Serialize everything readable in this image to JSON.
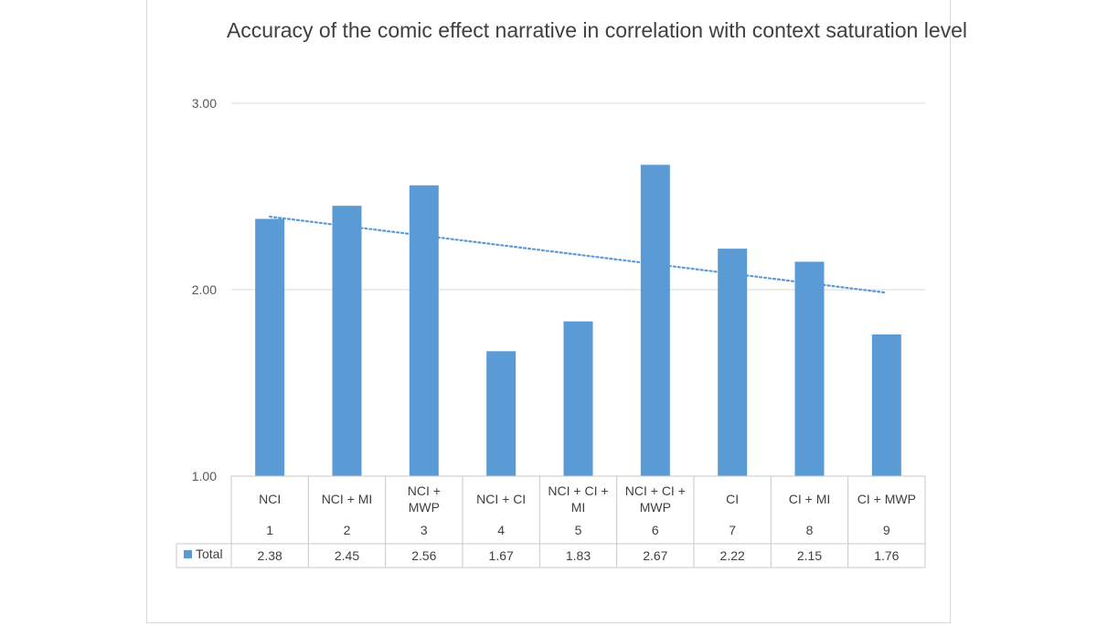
{
  "chart_data": {
    "type": "bar",
    "title": "Accuracy of the comic effect narrative in correlation with context saturation level",
    "categories": [
      "NCI",
      "NCI + MI",
      "NCI + MWP",
      "NCI + CI",
      "NCI + CI + MI",
      "NCI + CI + MWP",
      "CI",
      "CI + MI",
      "CI + MWP"
    ],
    "category_labels": [
      [
        "NCI"
      ],
      [
        "NCI + MI"
      ],
      [
        "NCI +",
        "MWP"
      ],
      [
        "NCI + CI"
      ],
      [
        "NCI + CI +",
        "MI"
      ],
      [
        "NCI + CI +",
        "MWP"
      ],
      [
        "CI"
      ],
      [
        "CI + MI"
      ],
      [
        "CI + MWP"
      ]
    ],
    "category_numbers": [
      "1",
      "2",
      "3",
      "4",
      "5",
      "6",
      "7",
      "8",
      "9"
    ],
    "series": [
      {
        "name": "Total",
        "values": [
          2.38,
          2.45,
          2.56,
          1.67,
          1.83,
          2.67,
          2.22,
          2.15,
          1.76
        ],
        "display_values": [
          "2.38",
          "2.45",
          "2.56",
          "1.67",
          "1.83",
          "2.67",
          "2.22",
          "2.15",
          "1.76"
        ],
        "color": "#5b9bd5"
      }
    ],
    "trendline": {
      "type": "linear",
      "style": "dotted",
      "color": "#5b9bd5"
    },
    "ylim": [
      1.0,
      3.0
    ],
    "yticks": [
      "1.00",
      "2.00",
      "3.00"
    ],
    "ytick_values": [
      1.0,
      2.0,
      3.0
    ],
    "gridlines": true,
    "legend": "data-table",
    "xlabel": "",
    "ylabel": ""
  }
}
